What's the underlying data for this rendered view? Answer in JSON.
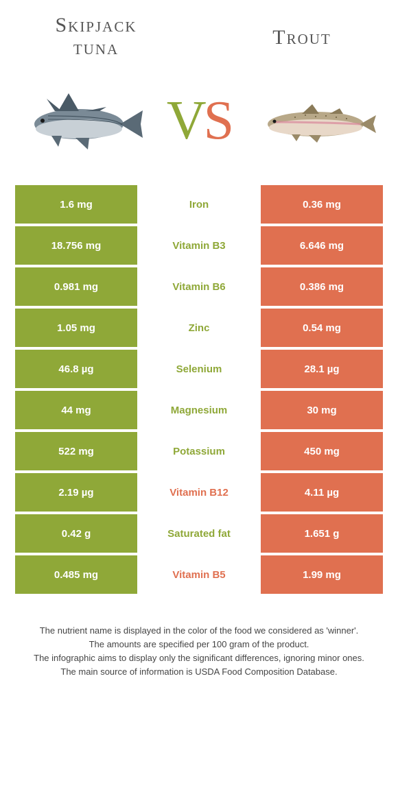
{
  "colors": {
    "left": "#8fa838",
    "right": "#e07050",
    "leftText": "#8fa838",
    "rightText": "#e07050",
    "white": "#ffffff"
  },
  "titles": {
    "leftLine1": "Skipjack",
    "leftLine2": "tuna",
    "right": "Trout"
  },
  "vs": {
    "v": "V",
    "s": "S"
  },
  "rows": [
    {
      "left": "1.6 mg",
      "label": "Iron",
      "right": "0.36 mg",
      "winner": "left"
    },
    {
      "left": "18.756 mg",
      "label": "Vitamin B3",
      "right": "6.646 mg",
      "winner": "left"
    },
    {
      "left": "0.981 mg",
      "label": "Vitamin B6",
      "right": "0.386 mg",
      "winner": "left"
    },
    {
      "left": "1.05 mg",
      "label": "Zinc",
      "right": "0.54 mg",
      "winner": "left"
    },
    {
      "left": "46.8 µg",
      "label": "Selenium",
      "right": "28.1 µg",
      "winner": "left"
    },
    {
      "left": "44 mg",
      "label": "Magnesium",
      "right": "30 mg",
      "winner": "left"
    },
    {
      "left": "522 mg",
      "label": "Potassium",
      "right": "450 mg",
      "winner": "left"
    },
    {
      "left": "2.19 µg",
      "label": "Vitamin B12",
      "right": "4.11 µg",
      "winner": "right"
    },
    {
      "left": "0.42 g",
      "label": "Saturated fat",
      "right": "1.651 g",
      "winner": "left"
    },
    {
      "left": "0.485 mg",
      "label": "Vitamin B5",
      "right": "1.99 mg",
      "winner": "right"
    }
  ],
  "footer": {
    "l1": "The nutrient name is displayed in the color of the food we considered as 'winner'.",
    "l2": "The amounts are specified per 100 gram of the product.",
    "l3": "The infographic aims to display only the significant differences, ignoring minor ones.",
    "l4": "The main source of information is USDA Food Composition Database."
  }
}
